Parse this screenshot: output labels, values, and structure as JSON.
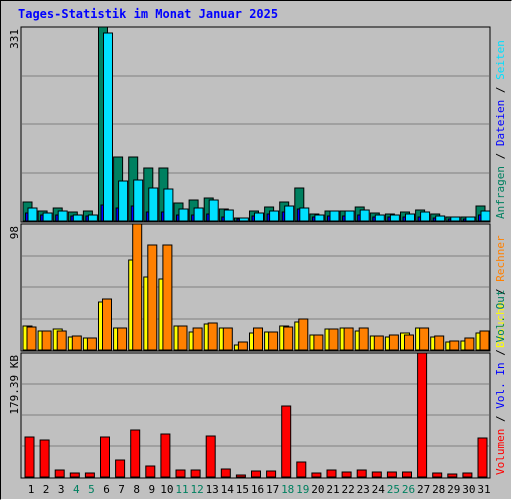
{
  "title": "Tages-Statistik im Monat Januar 2025",
  "chart_data": [
    {
      "type": "bar",
      "panel": "top",
      "ymax_label": "331",
      "ymax": 331,
      "categories": [
        "1",
        "2",
        "3",
        "4",
        "5",
        "6",
        "7",
        "8",
        "9",
        "10",
        "11",
        "12",
        "13",
        "14",
        "15",
        "16",
        "17",
        "18",
        "19",
        "20",
        "21",
        "22",
        "23",
        "24",
        "25",
        "26",
        "27",
        "28",
        "29",
        "30",
        "31"
      ],
      "weekend_days": [
        "4",
        "5",
        "11",
        "12",
        "18",
        "19",
        "25",
        "26"
      ],
      "legend": [
        "Anfragen",
        "Dateien",
        "Seiten"
      ],
      "legend_colors": [
        "#008060",
        "#0000ff",
        "#00e0ff"
      ],
      "series": [
        {
          "name": "Anfragen",
          "color": "#008060",
          "values": [
            32,
            17,
            22,
            15,
            17,
            331,
            110,
            110,
            90,
            90,
            30,
            35,
            40,
            20,
            5,
            17,
            24,
            32,
            57,
            12,
            17,
            17,
            24,
            14,
            12,
            15,
            19,
            12,
            7,
            7,
            25
          ]
        },
        {
          "name": "Dateien",
          "color": "#0000ff",
          "values": [
            14,
            10,
            11,
            8,
            8,
            28,
            22,
            25,
            16,
            15,
            11,
            10,
            12,
            7,
            3,
            8,
            12,
            15,
            20,
            6,
            8,
            8,
            10,
            6,
            6,
            7,
            7,
            5,
            3,
            3,
            10
          ]
        },
        {
          "name": "Seiten",
          "color": "#00e0ff",
          "values": [
            22,
            14,
            17,
            11,
            10,
            320,
            68,
            70,
            56,
            55,
            20,
            22,
            35,
            18,
            5,
            14,
            17,
            25,
            22,
            10,
            17,
            17,
            19,
            11,
            10,
            12,
            15,
            9,
            6,
            6,
            17
          ]
        }
      ]
    },
    {
      "type": "bar",
      "panel": "middle",
      "ymax_label": "98",
      "ymax": 98,
      "legend": [
        "Besuche",
        "Rechner"
      ],
      "legend_colors": [
        "#ffff00",
        "#ff8000"
      ],
      "series": [
        {
          "name": "Besuche",
          "color": "#ffff00",
          "values": [
            19,
            15,
            16,
            10,
            9,
            37,
            17,
            70,
            57,
            55,
            19,
            14,
            20,
            17,
            4,
            13,
            14,
            19,
            22,
            12,
            16,
            17,
            15,
            11,
            10,
            13,
            17,
            10,
            6,
            7,
            13
          ]
        },
        {
          "name": "Rechner",
          "color": "#ff8000",
          "values": [
            18,
            15,
            15,
            11,
            9,
            40,
            17,
            98,
            82,
            82,
            19,
            17,
            21,
            17,
            6,
            17,
            14,
            18,
            24,
            12,
            16,
            17,
            17,
            11,
            12,
            12,
            17,
            11,
            7,
            9,
            15
          ]
        }
      ]
    },
    {
      "type": "bar",
      "panel": "bottom",
      "ymax_label": "179.39 KB",
      "ymax": 179.39,
      "legend": [
        "Volumen",
        "Vol. In",
        "Vol. Out"
      ],
      "legend_colors": [
        "#ff0000",
        "#0000ff",
        "#008060"
      ],
      "series": [
        {
          "name": "Volumen",
          "color": "#ff0000",
          "values": [
            58,
            53,
            10,
            6,
            6,
            58,
            25,
            68,
            16,
            62,
            10,
            10,
            59,
            12,
            3,
            9,
            9,
            103,
            21,
            6,
            10,
            7,
            10,
            7,
            7,
            7,
            179.39,
            6,
            4,
            6,
            57
          ]
        }
      ]
    }
  ]
}
